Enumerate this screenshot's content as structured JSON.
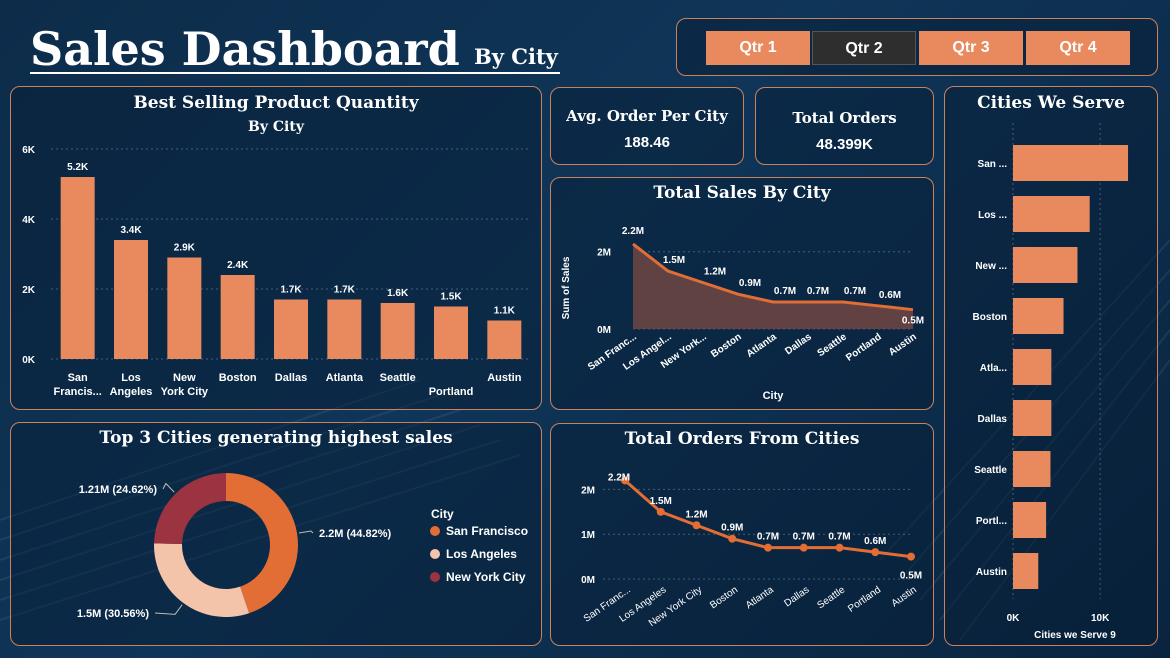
{
  "header": {
    "title": "Sales Dashboard",
    "subtitle": "By City"
  },
  "quarters": [
    "Qtr 1",
    "Qtr 2",
    "Qtr 3",
    "Qtr 4"
  ],
  "selected_quarter": "Qtr 2",
  "kpis": {
    "avg_order_label": "Avg. Order Per City",
    "avg_order_value": "188.46",
    "total_orders_label": "Total Orders",
    "total_orders_value": "48.399K"
  },
  "colors": {
    "accent": "#e8895e",
    "donut_sf": "#e26d35",
    "donut_la": "#f3c4aa",
    "donut_ny": "#9b3340",
    "area_fill": "#6a4543",
    "border": "#c9825c"
  },
  "chart_data": [
    {
      "id": "best_selling",
      "type": "bar",
      "title": "Best Selling Product Quantity",
      "subtitle": "By City",
      "categories": [
        "San Francis...",
        "Los Angeles",
        "New York City",
        "Boston",
        "Dallas",
        "Atlanta",
        "Seattle",
        "Portland",
        "Austin"
      ],
      "category_lines": [
        [
          "San",
          "Francis..."
        ],
        [
          "Los",
          "Angeles"
        ],
        [
          "New",
          "York City"
        ],
        [
          "Boston"
        ],
        [
          "Dallas"
        ],
        [
          "Atlanta"
        ],
        [
          "Seattle"
        ],
        [
          "",
          "Portland"
        ],
        [
          "Austin"
        ]
      ],
      "values": [
        5200,
        3400,
        2900,
        2400,
        1700,
        1700,
        1600,
        1500,
        1100
      ],
      "labels": [
        "5.2K",
        "3.4K",
        "2.9K",
        "2.4K",
        "1.7K",
        "1.7K",
        "1.6K",
        "1.5K",
        "1.1K"
      ],
      "yticks": [
        0,
        2000,
        4000,
        6000
      ],
      "ytick_labels": [
        "0K",
        "2K",
        "4K",
        "6K"
      ],
      "ylim": [
        0,
        6000
      ]
    },
    {
      "id": "total_sales",
      "type": "area",
      "title": "Total Sales By City",
      "xlabel": "City",
      "ylabel": "Sum of Sales",
      "categories": [
        "San Franc...",
        "Los Angel...",
        "New York...",
        "Boston",
        "Atlanta",
        "Dallas",
        "Seattle",
        "Portland",
        "Austin"
      ],
      "values": [
        2200000,
        1500000,
        1200000,
        900000,
        700000,
        700000,
        700000,
        600000,
        500000
      ],
      "labels": [
        "2.2M",
        "1.5M",
        "1.2M",
        "0.9M",
        "0.7M",
        "0.7M",
        "0.7M",
        "0.6M",
        "0.5M"
      ],
      "yticks": [
        0,
        2000000
      ],
      "ytick_labels": [
        "0M",
        "2M"
      ],
      "ylim": [
        0,
        2200000
      ]
    },
    {
      "id": "top3",
      "type": "pie",
      "donut": true,
      "title": "Top 3 Cities generating highest sales",
      "legend_title": "City",
      "slices": [
        {
          "name": "San Francisco",
          "value": 2200000,
          "label": "2.2M (44.82%)"
        },
        {
          "name": "Los Angeles",
          "value": 1500000,
          "label": "1.5M (30.56%)"
        },
        {
          "name": "New York City",
          "value": 1210000,
          "label": "1.21M (24.62%)"
        }
      ]
    },
    {
      "id": "total_orders",
      "type": "line",
      "title": "Total Orders From Cities",
      "categories": [
        "San Franc...",
        "Los Angeles",
        "New York City",
        "Boston",
        "Atlanta",
        "Dallas",
        "Seattle",
        "Portland",
        "Austin"
      ],
      "values": [
        2200000,
        1500000,
        1200000,
        900000,
        700000,
        700000,
        700000,
        600000,
        500000
      ],
      "labels": [
        "2.2M",
        "1.5M",
        "1.2M",
        "0.9M",
        "0.7M",
        "0.7M",
        "0.7M",
        "0.6M",
        "0.5M"
      ],
      "yticks": [
        0,
        1000000,
        2000000
      ],
      "ytick_labels": [
        "0M",
        "1M",
        "2M"
      ],
      "ylim": [
        0,
        2300000
      ]
    },
    {
      "id": "cities_served",
      "type": "bar",
      "orientation": "horizontal",
      "title": "Cities We Serve",
      "xlabel": "Cities we Serve 9",
      "categories": [
        "San ...",
        "Los ...",
        "New ...",
        "Boston",
        "Atla...",
        "Dallas",
        "Seattle",
        "Portl...",
        "Austin"
      ],
      "values": [
        13200,
        8800,
        7400,
        5800,
        4400,
        4400,
        4300,
        3800,
        2900
      ],
      "xticks": [
        0,
        10000
      ],
      "xtick_labels": [
        "0K",
        "10K"
      ],
      "xlim": [
        0,
        14000
      ]
    }
  ]
}
